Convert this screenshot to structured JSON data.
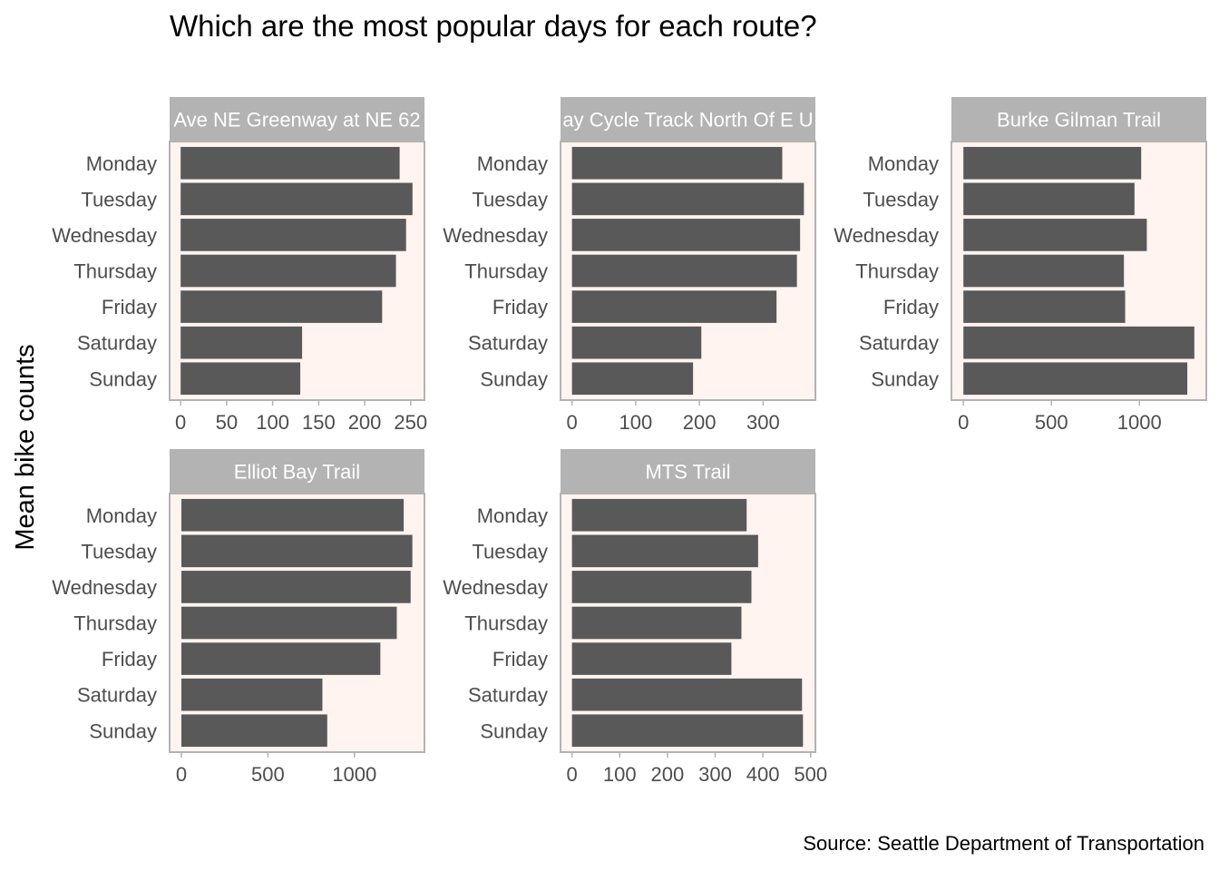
{
  "page": {
    "title": "Which are the most popular days for each route?",
    "ylabel": "Mean bike counts",
    "caption": "Source: Seattle Department of Transportation"
  },
  "colors": {
    "panel_background": "#fff4ef",
    "panel_border": "#b3b3b3",
    "strip_fill": "#b3b3b3",
    "strip_text": "#ffffff",
    "bar_fill": "#595959",
    "tick_label": "#4d4d4d"
  },
  "chart_data": {
    "type": "bar",
    "orientation": "horizontal",
    "faceted": true,
    "legend": "none",
    "grid": false,
    "categories": [
      "Monday",
      "Tuesday",
      "Wednesday",
      "Thursday",
      "Friday",
      "Saturday",
      "Sunday"
    ],
    "panels": [
      {
        "name": "Ave NE Greenway at NE 62",
        "values": [
          238,
          252,
          245,
          234,
          219,
          132,
          130
        ],
        "xlim": [
          -12,
          265
        ],
        "xticks": [
          0,
          50,
          100,
          150,
          200,
          250
        ]
      },
      {
        "name": "ay Cycle Track North Of E U",
        "values": [
          330,
          364,
          358,
          353,
          321,
          203,
          190
        ],
        "xlim": [
          -18,
          382
        ],
        "xticks": [
          0,
          100,
          200,
          300
        ]
      },
      {
        "name": "Burke Gilman Trail",
        "values": [
          1010,
          972,
          1042,
          912,
          919,
          1312,
          1272
        ],
        "xlim": [
          -68,
          1380
        ],
        "xticks": [
          0,
          500,
          1000
        ]
      },
      {
        "name": "Elliot Bay Trail",
        "values": [
          1285,
          1335,
          1325,
          1245,
          1150,
          815,
          843
        ],
        "xlim": [
          -68,
          1405
        ],
        "xticks": [
          0,
          500,
          1000
        ]
      },
      {
        "name": "MTS Trail",
        "values": [
          366,
          390,
          376,
          355,
          334,
          482,
          484
        ],
        "xlim": [
          -24,
          510
        ],
        "xticks": [
          0,
          100,
          200,
          300,
          400,
          500
        ]
      }
    ]
  }
}
